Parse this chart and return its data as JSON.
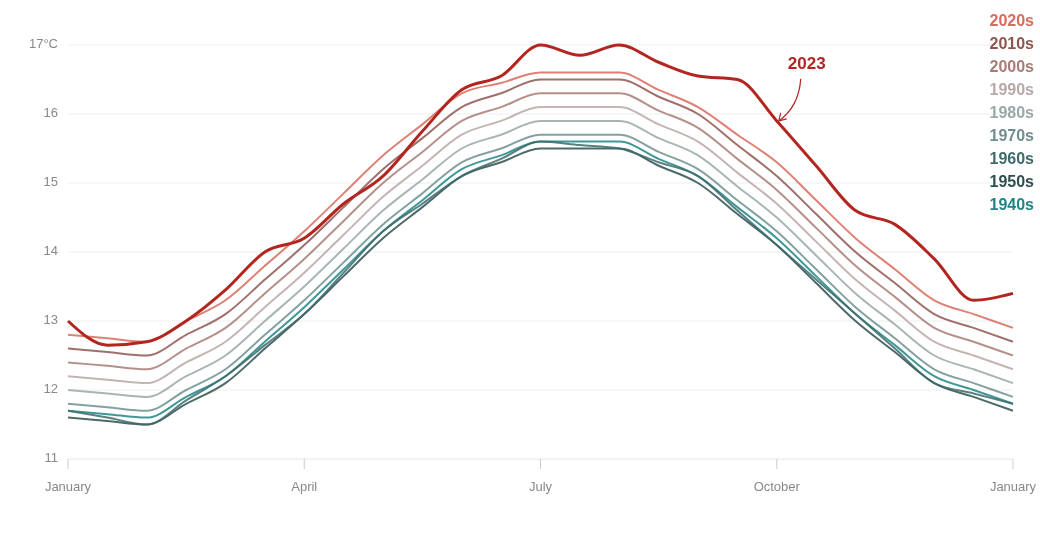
{
  "chart_data": {
    "type": "line",
    "categories": [
      "January",
      null,
      null,
      null,
      null,
      null,
      "April",
      null,
      null,
      null,
      null,
      null,
      "July",
      null,
      null,
      null,
      null,
      null,
      "October",
      null,
      null,
      null,
      null,
      null,
      "January"
    ],
    "ylim": [
      11,
      17
    ],
    "yticks": [
      11,
      12,
      13,
      14,
      15,
      16,
      {
        "value": 17,
        "label": "17°C"
      }
    ],
    "grid": "y",
    "legend": "top right",
    "series": [
      {
        "name": "1940s",
        "color": "#1f8585",
        "values": [
          11.7,
          11.65,
          11.6,
          11.9,
          12.2,
          12.7,
          13.2,
          13.75,
          14.3,
          14.75,
          15.2,
          15.4,
          15.6,
          15.6,
          15.6,
          15.35,
          15.1,
          14.65,
          14.2,
          13.65,
          13.1,
          12.65,
          12.2,
          12.0,
          11.8
        ]
      },
      {
        "name": "1950s",
        "color": "#2f4f4f",
        "values": [
          11.6,
          11.55,
          11.5,
          11.8,
          12.1,
          12.6,
          13.1,
          13.65,
          14.2,
          14.65,
          15.1,
          15.3,
          15.5,
          15.5,
          15.5,
          15.25,
          15.0,
          14.55,
          14.1,
          13.55,
          13.0,
          12.55,
          12.1,
          11.9,
          11.7
        ]
      },
      {
        "name": "1960s",
        "color": "#3d6b6b",
        "values": [
          11.7,
          11.6,
          11.5,
          11.85,
          12.2,
          12.65,
          13.1,
          13.7,
          14.3,
          14.7,
          15.1,
          15.35,
          15.6,
          15.55,
          15.5,
          15.3,
          15.1,
          14.6,
          14.1,
          13.6,
          13.1,
          12.6,
          12.1,
          11.95,
          11.8
        ]
      },
      {
        "name": "1970s",
        "color": "#6f8f8f",
        "values": [
          11.8,
          11.75,
          11.7,
          12.0,
          12.3,
          12.8,
          13.3,
          13.85,
          14.4,
          14.85,
          15.3,
          15.5,
          15.7,
          15.7,
          15.7,
          15.45,
          15.2,
          14.75,
          14.3,
          13.75,
          13.2,
          12.75,
          12.3,
          12.1,
          11.9
        ]
      },
      {
        "name": "1980s",
        "color": "#9aa8a8",
        "values": [
          12.0,
          11.95,
          11.9,
          12.2,
          12.5,
          13.0,
          13.5,
          14.05,
          14.6,
          15.05,
          15.5,
          15.7,
          15.9,
          15.9,
          15.9,
          15.65,
          15.4,
          14.95,
          14.5,
          13.95,
          13.4,
          12.95,
          12.5,
          12.3,
          12.1
        ]
      },
      {
        "name": "1990s",
        "color": "#b8a8a6",
        "values": [
          12.2,
          12.15,
          12.1,
          12.4,
          12.7,
          13.2,
          13.7,
          14.25,
          14.8,
          15.25,
          15.7,
          15.9,
          16.1,
          16.1,
          16.1,
          15.85,
          15.6,
          15.15,
          14.7,
          14.15,
          13.6,
          13.15,
          12.7,
          12.5,
          12.3
        ]
      },
      {
        "name": "2000s",
        "color": "#a87c76",
        "values": [
          12.4,
          12.35,
          12.3,
          12.6,
          12.9,
          13.4,
          13.9,
          14.45,
          15.0,
          15.45,
          15.9,
          16.1,
          16.3,
          16.3,
          16.3,
          16.05,
          15.8,
          15.35,
          14.9,
          14.35,
          13.8,
          13.35,
          12.9,
          12.7,
          12.5
        ]
      },
      {
        "name": "2010s",
        "color": "#8f5650",
        "values": [
          12.6,
          12.55,
          12.5,
          12.8,
          13.1,
          13.6,
          14.1,
          14.65,
          15.2,
          15.65,
          16.1,
          16.3,
          16.5,
          16.5,
          16.5,
          16.25,
          16.0,
          15.55,
          15.1,
          14.55,
          14.0,
          13.55,
          13.1,
          12.9,
          12.7
        ]
      },
      {
        "name": "2020s",
        "color": "#d86b5c",
        "values": [
          12.8,
          12.75,
          12.7,
          13.0,
          13.3,
          13.8,
          14.3,
          14.85,
          15.4,
          15.85,
          16.3,
          16.45,
          16.6,
          16.6,
          16.6,
          16.35,
          16.1,
          15.7,
          15.3,
          14.75,
          14.2,
          13.75,
          13.3,
          13.1,
          12.9
        ]
      },
      {
        "color": "#b32620",
        "values": [
          13.0,
          12.65,
          12.7,
          13.0,
          13.45,
          14.0,
          14.2,
          14.7,
          15.1,
          15.75,
          16.35,
          16.55,
          17.0,
          16.85,
          17.0,
          16.75,
          16.55,
          16.5,
          15.9,
          15.25,
          14.6,
          14.4,
          13.9,
          13.3,
          13.4
        ]
      }
    ],
    "annotations": [
      {
        "text": "2023",
        "x": "October",
        "y": 15.9
      }
    ]
  }
}
